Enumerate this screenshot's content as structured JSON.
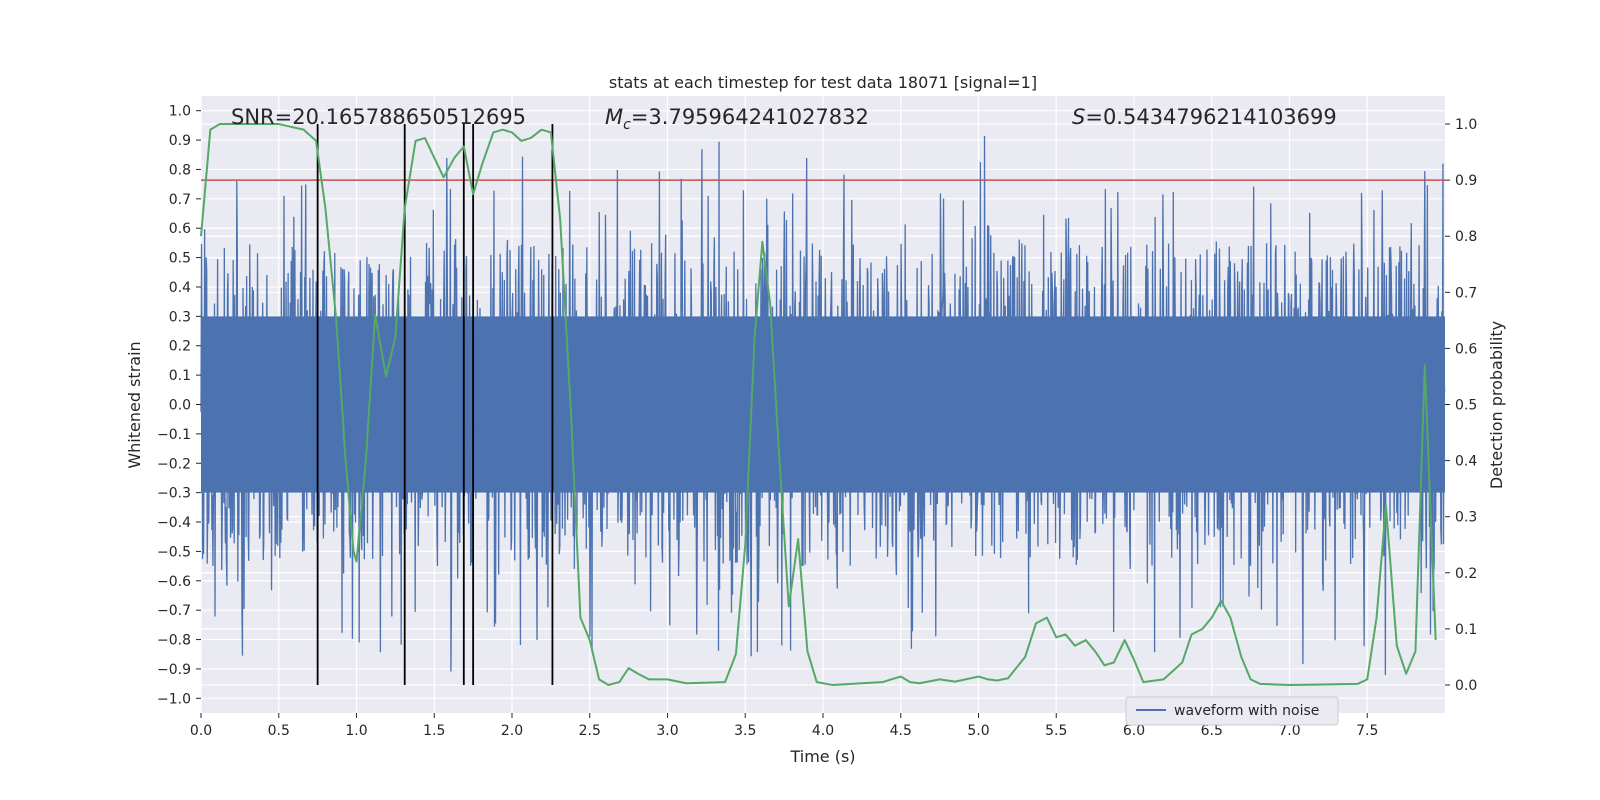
{
  "chart_data": {
    "type": "line",
    "title": "stats at each timestep for test data 18071 [signal=1]",
    "xlabel": "Time (s)",
    "ylabel_left": "Whitened strain",
    "ylabel_right": "Detection probability",
    "xlim": [
      0,
      8
    ],
    "ylim_left": [
      -1.05,
      1.05
    ],
    "ylim_right": [
      -0.05,
      1.05
    ],
    "x_ticks": [
      0.0,
      0.5,
      1.0,
      1.5,
      2.0,
      2.5,
      3.0,
      3.5,
      4.0,
      4.5,
      5.0,
      5.5,
      6.0,
      6.5,
      7.0,
      7.5
    ],
    "x_tick_labels": [
      "0.0",
      "0.5",
      "1.0",
      "1.5",
      "2.0",
      "2.5",
      "3.0",
      "3.5",
      "4.0",
      "4.5",
      "5.0",
      "5.5",
      "6.0",
      "6.5",
      "7.0",
      "7.5"
    ],
    "y_left_ticks": [
      -1.0,
      -0.9,
      -0.8,
      -0.7,
      -0.6,
      -0.5,
      -0.4,
      -0.3,
      -0.2,
      -0.1,
      0.0,
      0.1,
      0.2,
      0.3,
      0.4,
      0.5,
      0.6,
      0.7,
      0.8,
      0.9,
      1.0
    ],
    "y_left_tick_labels": [
      "−1.0",
      "−0.9",
      "−0.8",
      "−0.7",
      "−0.6",
      "−0.5",
      "−0.4",
      "−0.3",
      "−0.2",
      "−0.1",
      "0.0",
      "0.1",
      "0.2",
      "0.3",
      "0.4",
      "0.5",
      "0.6",
      "0.7",
      "0.8",
      "0.9",
      "1.0"
    ],
    "y_right_ticks": [
      0.0,
      0.1,
      0.2,
      0.3,
      0.4,
      0.5,
      0.6,
      0.7,
      0.8,
      0.9,
      1.0
    ],
    "y_right_tick_labels": [
      "0.0",
      "0.1",
      "0.2",
      "0.3",
      "0.4",
      "0.5",
      "0.6",
      "0.7",
      "0.8",
      "0.9",
      "1.0"
    ],
    "annotations": {
      "snr": "SNR=20.165788650512695",
      "mc_symbol": "M",
      "mc_sub": "c",
      "mc_value": "=3.795964241027832",
      "s_symbol": "S",
      "s_value": "=0.5434796214103699"
    },
    "legend": {
      "position": "lower-right",
      "entries": [
        "waveform with noise"
      ]
    },
    "threshold": {
      "axis": "right",
      "value": 0.9,
      "color": "#c44e52"
    },
    "vertical_lines": {
      "x": [
        0.75,
        1.31,
        1.69,
        1.75,
        2.26
      ],
      "y_range_right": [
        0.0,
        1.0
      ],
      "color": "#000000"
    },
    "waveform": {
      "name": "waveform with noise",
      "color": "#4c72b0",
      "samples": 2400,
      "seed": 18071,
      "core_amplitude": 0.3,
      "spike_max": 1.0
    },
    "probability_series": {
      "name": "detection probability",
      "color": "#55a868",
      "axis": "right",
      "points": [
        [
          0.0,
          0.8
        ],
        [
          0.06,
          0.99
        ],
        [
          0.12,
          1.0
        ],
        [
          0.5,
          1.0
        ],
        [
          0.66,
          0.99
        ],
        [
          0.74,
          0.97
        ],
        [
          0.8,
          0.85
        ],
        [
          0.87,
          0.65
        ],
        [
          0.93,
          0.4
        ],
        [
          0.98,
          0.24
        ],
        [
          1.0,
          0.22
        ],
        [
          1.06,
          0.4
        ],
        [
          1.12,
          0.66
        ],
        [
          1.19,
          0.55
        ],
        [
          1.25,
          0.62
        ],
        [
          1.31,
          0.85
        ],
        [
          1.38,
          0.97
        ],
        [
          1.44,
          0.975
        ],
        [
          1.5,
          0.94
        ],
        [
          1.56,
          0.905
        ],
        [
          1.63,
          0.94
        ],
        [
          1.69,
          0.96
        ],
        [
          1.75,
          0.875
        ],
        [
          1.81,
          0.93
        ],
        [
          1.88,
          0.985
        ],
        [
          1.94,
          0.99
        ],
        [
          2.0,
          0.985
        ],
        [
          2.06,
          0.97
        ],
        [
          2.12,
          0.975
        ],
        [
          2.19,
          0.99
        ],
        [
          2.25,
          0.985
        ],
        [
          2.31,
          0.83
        ],
        [
          2.38,
          0.48
        ],
        [
          2.44,
          0.12
        ],
        [
          2.5,
          0.08
        ],
        [
          2.56,
          0.01
        ],
        [
          2.62,
          0.0
        ],
        [
          2.69,
          0.005
        ],
        [
          2.75,
          0.03
        ],
        [
          2.81,
          0.02
        ],
        [
          2.88,
          0.01
        ],
        [
          3.0,
          0.01
        ],
        [
          3.12,
          0.003
        ],
        [
          3.37,
          0.005
        ],
        [
          3.44,
          0.055
        ],
        [
          3.5,
          0.25
        ],
        [
          3.56,
          0.62
        ],
        [
          3.61,
          0.79
        ],
        [
          3.66,
          0.68
        ],
        [
          3.72,
          0.4
        ],
        [
          3.78,
          0.14
        ],
        [
          3.84,
          0.26
        ],
        [
          3.9,
          0.06
        ],
        [
          3.96,
          0.005
        ],
        [
          4.06,
          0.0
        ],
        [
          4.25,
          0.003
        ],
        [
          4.38,
          0.005
        ],
        [
          4.5,
          0.015
        ],
        [
          4.56,
          0.005
        ],
        [
          4.62,
          0.003
        ],
        [
          4.75,
          0.01
        ],
        [
          4.85,
          0.006
        ],
        [
          5.0,
          0.015
        ],
        [
          5.06,
          0.01
        ],
        [
          5.12,
          0.008
        ],
        [
          5.19,
          0.012
        ],
        [
          5.3,
          0.05
        ],
        [
          5.37,
          0.11
        ],
        [
          5.44,
          0.12
        ],
        [
          5.5,
          0.085
        ],
        [
          5.56,
          0.09
        ],
        [
          5.62,
          0.07
        ],
        [
          5.69,
          0.08
        ],
        [
          5.75,
          0.06
        ],
        [
          5.81,
          0.035
        ],
        [
          5.87,
          0.04
        ],
        [
          5.94,
          0.08
        ],
        [
          6.0,
          0.045
        ],
        [
          6.06,
          0.005
        ],
        [
          6.19,
          0.01
        ],
        [
          6.31,
          0.04
        ],
        [
          6.37,
          0.09
        ],
        [
          6.44,
          0.1
        ],
        [
          6.5,
          0.12
        ],
        [
          6.56,
          0.15
        ],
        [
          6.62,
          0.12
        ],
        [
          6.69,
          0.05
        ],
        [
          6.75,
          0.01
        ],
        [
          6.81,
          0.002
        ],
        [
          7.0,
          0.0
        ],
        [
          7.25,
          0.001
        ],
        [
          7.44,
          0.002
        ],
        [
          7.5,
          0.01
        ],
        [
          7.56,
          0.12
        ],
        [
          7.62,
          0.32
        ],
        [
          7.69,
          0.07
        ],
        [
          7.75,
          0.02
        ],
        [
          7.81,
          0.06
        ],
        [
          7.87,
          0.57
        ],
        [
          7.94,
          0.08
        ]
      ]
    }
  }
}
